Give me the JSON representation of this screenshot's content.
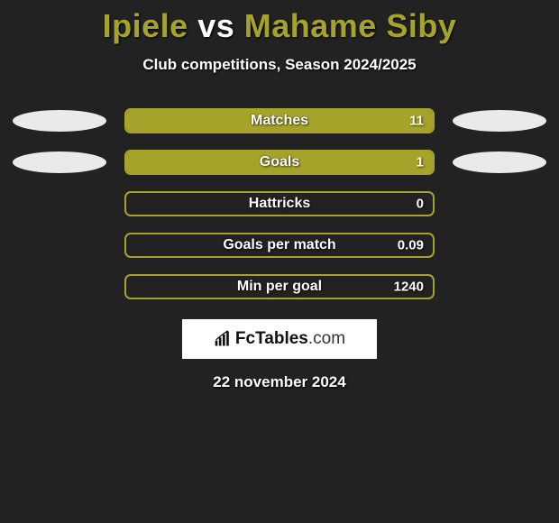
{
  "title": {
    "player1": "Ipiele",
    "vs": "vs",
    "player2": "Mahame Siby",
    "player1_color": "#a6a32b",
    "player2_color": "#a6a32b"
  },
  "subtitle": "Club competitions, Season 2024/2025",
  "background_color": "#222222",
  "ellipse_color": "#eaeaea",
  "stats": [
    {
      "label": "Matches",
      "value": "11",
      "fill_pct": 100,
      "fill_color": "#a6a32b",
      "border_color": "#a6a32b",
      "show_ellipses": true
    },
    {
      "label": "Goals",
      "value": "1",
      "fill_pct": 100,
      "fill_color": "#a6a32b",
      "border_color": "#a6a32b",
      "show_ellipses": true
    },
    {
      "label": "Hattricks",
      "value": "0",
      "fill_pct": 0,
      "fill_color": "#a6a32b",
      "border_color": "#a6a32b",
      "show_ellipses": false
    },
    {
      "label": "Goals per match",
      "value": "0.09",
      "fill_pct": 0,
      "fill_color": "#a6a32b",
      "border_color": "#a6a32b",
      "show_ellipses": false
    },
    {
      "label": "Min per goal",
      "value": "1240",
      "fill_pct": 0,
      "fill_color": "#a6a32b",
      "border_color": "#a6a32b",
      "show_ellipses": false
    }
  ],
  "logo": {
    "brand": "FcTables",
    "domain": ".com"
  },
  "date": "22 november 2024"
}
